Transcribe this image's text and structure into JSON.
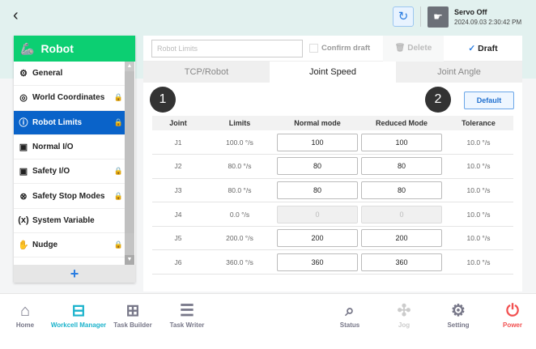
{
  "header": {
    "back": "‹",
    "servo_status": "Servo Off",
    "datetime": "2024.09.03 2:30:42 PM"
  },
  "sidebar": {
    "title": "Robot",
    "add": "+",
    "items": [
      {
        "label": "General",
        "icon": "⚙",
        "locked": false
      },
      {
        "label": "World Coordinates",
        "icon": "◎",
        "locked": true
      },
      {
        "label": "Robot Limits",
        "icon": "ⓘ",
        "locked": true,
        "active": true
      },
      {
        "label": "Normal I/O",
        "icon": "▣",
        "locked": false
      },
      {
        "label": "Safety I/O",
        "icon": "▣",
        "locked": true
      },
      {
        "label": "Safety Stop Modes",
        "icon": "⊗",
        "locked": true
      },
      {
        "label": "System Variable",
        "icon": "(x)",
        "locked": false
      },
      {
        "label": "Nudge",
        "icon": "✋",
        "locked": true
      }
    ]
  },
  "toolbar": {
    "name_placeholder": "Robot Limits",
    "confirm_draft": "Confirm draft",
    "delete": "Delete",
    "draft": "Draft"
  },
  "tabs": [
    "TCP/Robot",
    "Joint Speed",
    "Joint Angle"
  ],
  "active_tab": "Joint Speed",
  "badges": [
    "1",
    "2"
  ],
  "default_button": "Default",
  "table": {
    "headers": [
      "Joint",
      "Limits",
      "Normal mode",
      "Reduced Mode",
      "Tolerance"
    ],
    "rows": [
      {
        "joint": "J1",
        "limit": "100.0 °/s",
        "normal": "100",
        "reduced": "100",
        "tolerance": "10.0 °/s"
      },
      {
        "joint": "J2",
        "limit": "80.0 °/s",
        "normal": "80",
        "reduced": "80",
        "tolerance": "10.0 °/s"
      },
      {
        "joint": "J3",
        "limit": "80.0 °/s",
        "normal": "80",
        "reduced": "80",
        "tolerance": "10.0 °/s"
      },
      {
        "joint": "J4",
        "limit": "0.0 °/s",
        "normal": "0",
        "reduced": "0",
        "tolerance": "10.0 °/s",
        "disabled": true
      },
      {
        "joint": "J5",
        "limit": "200.0 °/s",
        "normal": "200",
        "reduced": "200",
        "tolerance": "10.0 °/s"
      },
      {
        "joint": "J6",
        "limit": "360.0 °/s",
        "normal": "360",
        "reduced": "360",
        "tolerance": "10.0 °/s"
      }
    ]
  },
  "nav": [
    {
      "label": "Home",
      "icon": "⌂",
      "color": "#778"
    },
    {
      "label": "Workcell Manager",
      "icon": "⊟",
      "color": "#1bb3cc"
    },
    {
      "label": "Task Builder",
      "icon": "⊞",
      "color": "#778"
    },
    {
      "label": "Task Writer",
      "icon": "☰",
      "color": "#778"
    },
    {
      "label": "Status",
      "icon": "⌕",
      "color": "#778"
    },
    {
      "label": "Jog",
      "icon": "✣",
      "color": "#ccc"
    },
    {
      "label": "Setting",
      "icon": "⚙",
      "color": "#778"
    },
    {
      "label": "Power",
      "icon": "⏻",
      "color": "#f25050"
    }
  ]
}
